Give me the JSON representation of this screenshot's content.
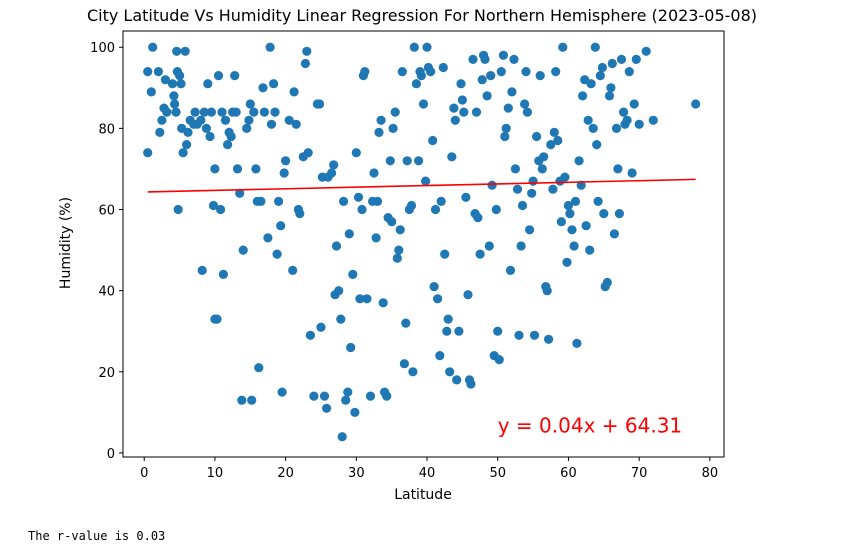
{
  "chart_data": {
    "type": "scatter",
    "title": "City Latitude Vs Humidity Linear Regression For Northern Hemisphere (2023-05-08)",
    "xlabel": "Latitude",
    "ylabel": "Humidity (%)",
    "xlim": [
      -3,
      82
    ],
    "ylim": [
      -1,
      104
    ],
    "xticks": [
      0,
      10,
      20,
      30,
      40,
      50,
      60,
      70,
      80
    ],
    "yticks": [
      0,
      20,
      40,
      60,
      80,
      100
    ],
    "grid": false,
    "colors": {
      "points": "#1f77b4",
      "regression": "#ff0000",
      "annotation": "#ff0000"
    },
    "regression": {
      "slope": 0.04,
      "intercept": 64.31,
      "x_range": [
        0.5,
        78
      ]
    },
    "annotation": {
      "text": "y = 0.04x + 64.31",
      "x": 50,
      "y": 5
    },
    "series": [
      {
        "points": [
          [
            0.5,
            94
          ],
          [
            0.5,
            74
          ],
          [
            1,
            89
          ],
          [
            1.2,
            100
          ],
          [
            2,
            94
          ],
          [
            2.2,
            79
          ],
          [
            2.5,
            82
          ],
          [
            2.8,
            85
          ],
          [
            3,
            92
          ],
          [
            3.2,
            84
          ],
          [
            4,
            91
          ],
          [
            4.2,
            88
          ],
          [
            4.3,
            86
          ],
          [
            4.5,
            84
          ],
          [
            4.6,
            99
          ],
          [
            4.7,
            94
          ],
          [
            4.8,
            60
          ],
          [
            5,
            93
          ],
          [
            5.2,
            91
          ],
          [
            5.3,
            80
          ],
          [
            5.5,
            74
          ],
          [
            5.8,
            99
          ],
          [
            6,
            76
          ],
          [
            6.2,
            79
          ],
          [
            6.5,
            82
          ],
          [
            7,
            81
          ],
          [
            7.2,
            84
          ],
          [
            7.5,
            81
          ],
          [
            8,
            82
          ],
          [
            8.2,
            45
          ],
          [
            8.5,
            84
          ],
          [
            8.8,
            80
          ],
          [
            9,
            91
          ],
          [
            9.3,
            78
          ],
          [
            9.5,
            84
          ],
          [
            9.8,
            61
          ],
          [
            10,
            70
          ],
          [
            10,
            33
          ],
          [
            10.3,
            33
          ],
          [
            10.5,
            93
          ],
          [
            10.8,
            60
          ],
          [
            11,
            84
          ],
          [
            11.2,
            44
          ],
          [
            11.5,
            82
          ],
          [
            11.8,
            76
          ],
          [
            12,
            79
          ],
          [
            12.3,
            78
          ],
          [
            12.5,
            84
          ],
          [
            12.8,
            93
          ],
          [
            13,
            84
          ],
          [
            13.2,
            70
          ],
          [
            13.5,
            64
          ],
          [
            13.8,
            13
          ],
          [
            14,
            50
          ],
          [
            14.5,
            80
          ],
          [
            14.8,
            82
          ],
          [
            15,
            86
          ],
          [
            15.2,
            13
          ],
          [
            15.5,
            84
          ],
          [
            15.8,
            70
          ],
          [
            16,
            62
          ],
          [
            16.2,
            21
          ],
          [
            16.5,
            62
          ],
          [
            16.8,
            90
          ],
          [
            17,
            84
          ],
          [
            17.5,
            53
          ],
          [
            17.8,
            100
          ],
          [
            18,
            81
          ],
          [
            18.3,
            91
          ],
          [
            18.5,
            84
          ],
          [
            18.8,
            49
          ],
          [
            19,
            62
          ],
          [
            19.3,
            56
          ],
          [
            19.5,
            15
          ],
          [
            19.8,
            69
          ],
          [
            20,
            72
          ],
          [
            20.5,
            82
          ],
          [
            21,
            45
          ],
          [
            21.2,
            89
          ],
          [
            21.5,
            81
          ],
          [
            21.8,
            60
          ],
          [
            22,
            59
          ],
          [
            22.5,
            73
          ],
          [
            22.8,
            96
          ],
          [
            23,
            99
          ],
          [
            23.2,
            74
          ],
          [
            23.5,
            29
          ],
          [
            24,
            14
          ],
          [
            24.5,
            86
          ],
          [
            24.8,
            86
          ],
          [
            25,
            31
          ],
          [
            25.2,
            68
          ],
          [
            25.5,
            14
          ],
          [
            25.8,
            11
          ],
          [
            26,
            68
          ],
          [
            26.5,
            69
          ],
          [
            26.8,
            71
          ],
          [
            27,
            39
          ],
          [
            27.2,
            51
          ],
          [
            27.5,
            40
          ],
          [
            27.8,
            33
          ],
          [
            28,
            4
          ],
          [
            28.2,
            62
          ],
          [
            28.5,
            13
          ],
          [
            28.8,
            15
          ],
          [
            29,
            54
          ],
          [
            29.2,
            26
          ],
          [
            29.5,
            44
          ],
          [
            29.8,
            10
          ],
          [
            30,
            74
          ],
          [
            30.3,
            63
          ],
          [
            30.5,
            38
          ],
          [
            30.8,
            60
          ],
          [
            31,
            93
          ],
          [
            31.2,
            94
          ],
          [
            31.5,
            38
          ],
          [
            32,
            14
          ],
          [
            32.3,
            62
          ],
          [
            32.5,
            69
          ],
          [
            32.8,
            53
          ],
          [
            33,
            62
          ],
          [
            33.2,
            79
          ],
          [
            33.5,
            82
          ],
          [
            33.8,
            37
          ],
          [
            34,
            15
          ],
          [
            34.3,
            14
          ],
          [
            34.5,
            58
          ],
          [
            34.8,
            72
          ],
          [
            35,
            57
          ],
          [
            35.2,
            80
          ],
          [
            35.5,
            84
          ],
          [
            35.8,
            48
          ],
          [
            36,
            50
          ],
          [
            36.2,
            55
          ],
          [
            36.5,
            94
          ],
          [
            36.8,
            22
          ],
          [
            37,
            32
          ],
          [
            37.2,
            72
          ],
          [
            37.5,
            60
          ],
          [
            37.8,
            61
          ],
          [
            38,
            20
          ],
          [
            38.2,
            100
          ],
          [
            38.5,
            91
          ],
          [
            38.8,
            72
          ],
          [
            39,
            94
          ],
          [
            39.2,
            93
          ],
          [
            39.5,
            86
          ],
          [
            39.8,
            67
          ],
          [
            40,
            100
          ],
          [
            40.2,
            95
          ],
          [
            40.5,
            94
          ],
          [
            40.8,
            77
          ],
          [
            41,
            41
          ],
          [
            41.2,
            60
          ],
          [
            41.5,
            38
          ],
          [
            41.8,
            24
          ],
          [
            42,
            62
          ],
          [
            42.3,
            95
          ],
          [
            42.5,
            49
          ],
          [
            42.8,
            30
          ],
          [
            43,
            33
          ],
          [
            43.2,
            20
          ],
          [
            43.5,
            73
          ],
          [
            43.8,
            85
          ],
          [
            44,
            82
          ],
          [
            44.2,
            18
          ],
          [
            44.5,
            30
          ],
          [
            44.8,
            91
          ],
          [
            45,
            87
          ],
          [
            45.2,
            84
          ],
          [
            45.5,
            63
          ],
          [
            45.8,
            39
          ],
          [
            46,
            18
          ],
          [
            46.2,
            17
          ],
          [
            46.5,
            97
          ],
          [
            46.8,
            59
          ],
          [
            47,
            84
          ],
          [
            47.2,
            58
          ],
          [
            47.5,
            49
          ],
          [
            47.8,
            92
          ],
          [
            48,
            98
          ],
          [
            48.2,
            97
          ],
          [
            48.5,
            88
          ],
          [
            48.8,
            51
          ],
          [
            49,
            93
          ],
          [
            49.2,
            66
          ],
          [
            49.5,
            24
          ],
          [
            49.8,
            60
          ],
          [
            50,
            30
          ],
          [
            50.2,
            23
          ],
          [
            50.5,
            94
          ],
          [
            50.8,
            98
          ],
          [
            51,
            78
          ],
          [
            51.2,
            80
          ],
          [
            51.5,
            85
          ],
          [
            51.8,
            45
          ],
          [
            52,
            89
          ],
          [
            52.3,
            97
          ],
          [
            52.5,
            70
          ],
          [
            52.8,
            65
          ],
          [
            53,
            29
          ],
          [
            53.3,
            51
          ],
          [
            53.5,
            61
          ],
          [
            53.8,
            86
          ],
          [
            54,
            94
          ],
          [
            54.2,
            84
          ],
          [
            54.5,
            55
          ],
          [
            54.8,
            64
          ],
          [
            55,
            67
          ],
          [
            55.2,
            29
          ],
          [
            55.5,
            78
          ],
          [
            55.8,
            72
          ],
          [
            56,
            93
          ],
          [
            56.3,
            70
          ],
          [
            56.5,
            73
          ],
          [
            56.8,
            41
          ],
          [
            57,
            40
          ],
          [
            57.2,
            28
          ],
          [
            57.5,
            76
          ],
          [
            57.8,
            65
          ],
          [
            58,
            79
          ],
          [
            58.2,
            94
          ],
          [
            58.5,
            77
          ],
          [
            58.8,
            67
          ],
          [
            59,
            57
          ],
          [
            59.2,
            100
          ],
          [
            59.5,
            68
          ],
          [
            59.8,
            47
          ],
          [
            60,
            61
          ],
          [
            60.2,
            59
          ],
          [
            60.5,
            55
          ],
          [
            60.8,
            51
          ],
          [
            61,
            62
          ],
          [
            61.2,
            27
          ],
          [
            61.5,
            72
          ],
          [
            61.8,
            66
          ],
          [
            62,
            88
          ],
          [
            62.3,
            92
          ],
          [
            62.5,
            56
          ],
          [
            62.8,
            82
          ],
          [
            63,
            50
          ],
          [
            63.2,
            91
          ],
          [
            63.5,
            80
          ],
          [
            63.8,
            100
          ],
          [
            64,
            76
          ],
          [
            64.2,
            62
          ],
          [
            64.5,
            93
          ],
          [
            64.8,
            95
          ],
          [
            65,
            59
          ],
          [
            65.2,
            41
          ],
          [
            65.5,
            42
          ],
          [
            65.8,
            88
          ],
          [
            66,
            90
          ],
          [
            66.2,
            96
          ],
          [
            66.5,
            54
          ],
          [
            66.8,
            80
          ],
          [
            67,
            70
          ],
          [
            67.2,
            59
          ],
          [
            67.5,
            97
          ],
          [
            67.8,
            84
          ],
          [
            68,
            81
          ],
          [
            68.3,
            82
          ],
          [
            68.6,
            94
          ],
          [
            69,
            69
          ],
          [
            69.3,
            86
          ],
          [
            69.6,
            97
          ],
          [
            70,
            81
          ],
          [
            71,
            99
          ],
          [
            72,
            82
          ],
          [
            78,
            86
          ]
        ]
      }
    ]
  },
  "output_text": "The r-value is 0.03"
}
